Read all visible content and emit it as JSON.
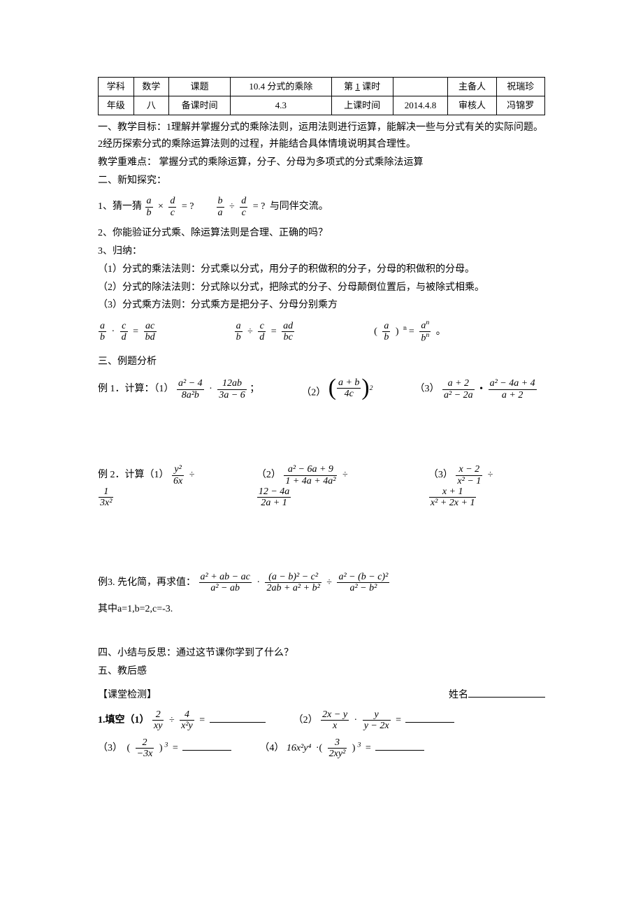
{
  "table": {
    "r1": {
      "c1": "学科",
      "c2": "数学",
      "c3": "课题",
      "c4": "10.4 分式的乘除",
      "c5": "第 1 课时",
      "c6": "",
      "c7": "主备人",
      "c8": "祝瑞珍"
    },
    "r2": {
      "c1": "年级",
      "c2": "八",
      "c3": "备课时间",
      "c4": "4.3",
      "c5": "上课时间",
      "c6": "2014.4.8",
      "c7": "审核人",
      "c8": "冯锦罗"
    }
  },
  "underline_1": "1",
  "goal_heading": "一、教学目标：1理解并掌握分式的乘除法则，运用法则进行运算，能解决一些与分式有关的实际问题。2经历探索分式的乘除运算法则的过程，并能结合具体情境说明其合理性。",
  "difficulty": "教学重难点：  掌握分式的乘除运算，分子、分母为多项式的分式乘除法运算",
  "sec2": "二、新知探究：",
  "guess_label": "1、猜一猜",
  "guess_tail": "与同伴交流。",
  "q2": "2、你能验证分式乘、除运算法则是合理、正确的吗？",
  "q3": "3、归纳：",
  "rule1": "（1）分式的乘法法则：分式乘以分式，用分子的积做积的分子，分母的积做积的分母。",
  "rule2": "（2）分式的除法法则：分式除以分式，把除式的分子、分母颠倒位置后，与被除式相乘。",
  "rule3": "（3）分式乘方法则：分式乘方是把分子、分母分别乘方",
  "sec3": "三、例题分析",
  "ex1_label": "例 1．计算：（1）",
  "ex1_p2": "（2）",
  "ex1_p3": "（3）",
  "ex2_label": "例 2．计算（1）",
  "ex2_p2": "（2）",
  "ex2_p3": "（3）",
  "ex3_label": "例3.  先化简，再求值：",
  "ex3_where": "其中a=1,b=2,c=-3.",
  "sec4": "四、小结与反思：通过这节课你学到了什么？",
  "sec5": "五、教后感",
  "test_heading": "【课堂检测】",
  "name_label": "姓名",
  "fill_label": "1.填空（1）",
  "fill_p2": "（2）",
  "fill_p3": "（3）",
  "fill_p4": "（4）",
  "math": {
    "a": "a",
    "b": "b",
    "c": "c",
    "d": "d",
    "n": "n",
    "q": "= ?",
    "ac": "ac",
    "bd": "bd",
    "ad": "ad",
    "bc": "bc",
    "an": "a",
    "bn": "b",
    "ex1_1_num1": "a² − 4",
    "ex1_1_den1": "8a²b",
    "ex1_1_num2": "12ab",
    "ex1_1_den2": "3a − 6",
    "ex1_2_num": "a + b",
    "ex1_2_den": "4c",
    "ex1_2_exp": "2",
    "ex1_3_num1": "a + 2",
    "ex1_3_den1": "a² − 2a",
    "ex1_3_num2": "a² − 4a + 4",
    "ex1_3_den2": "a + 2",
    "ex2_1_num1": "y²",
    "ex2_1_den1": "6x",
    "ex2_1_num2": "1",
    "ex2_1_den2": "3x²",
    "ex2_2_num1": "a² − 6a + 9",
    "ex2_2_den1": "1 + 4a + 4a²",
    "ex2_2_num2": "12 − 4a",
    "ex2_2_den2": "2a + 1",
    "ex2_3_num1": "x − 2",
    "ex2_3_den1": "x² − 1",
    "ex2_3_num2": "x + 1",
    "ex2_3_den2": "x² + 2x + 1",
    "ex3_num1": "a² + ab − ac",
    "ex3_den1": "a² − ab",
    "ex3_num2": "(a − b)² − c²",
    "ex3_den2": "2ab + a² + b²",
    "ex3_num3": "a² − (b − c)²",
    "ex3_den3": "a² − b²",
    "f1_num1": "2",
    "f1_den1": "xy",
    "f1_num2": "4",
    "f1_den2": "x²y",
    "f2_num1": "2x − y",
    "f2_den1": "x",
    "f2_num2": "y",
    "f2_den2": "y − 2x",
    "f3_num": "2",
    "f3_den": "−3x",
    "f3_exp": "3",
    "f4_coef": "16x²y⁴",
    "f4_num": "3",
    "f4_den": "2xy²",
    "f4_exp": "3"
  },
  "semicolon": "；",
  "dot": "·",
  "div": "÷",
  "times": "×",
  "eq": "=",
  "comma_period": "。",
  "colors": {
    "text": "#000000",
    "bg": "#ffffff",
    "border": "#000000"
  }
}
